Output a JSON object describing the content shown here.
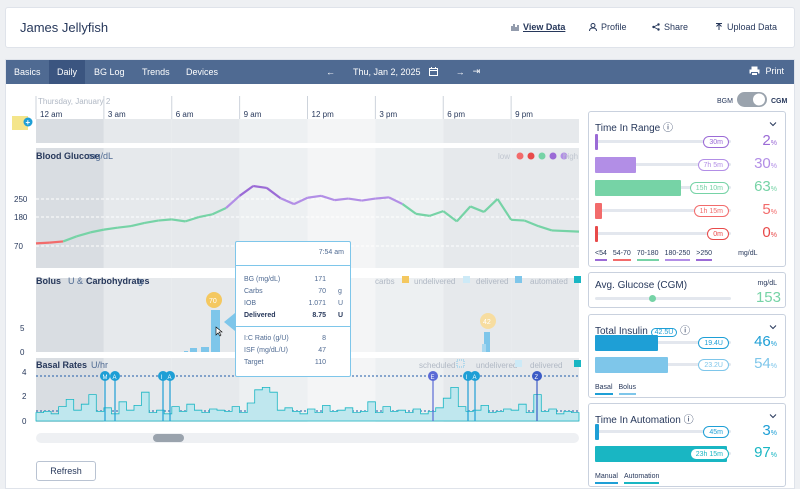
{
  "header": {
    "patient_name": "James Jellyfish",
    "view_data": "View Data",
    "profile": "Profile",
    "share": "Share",
    "upload": "Upload Data"
  },
  "tabs": [
    "Basics",
    "Daily",
    "BG Log",
    "Trends",
    "Devices"
  ],
  "active_tab": "Daily",
  "date_nav": {
    "date": "Thu, Jan 2, 2025"
  },
  "print": "Print",
  "toggle": {
    "left": "BGM",
    "right": "CGM"
  },
  "day_label": "Thursday, January 2",
  "time_ticks": [
    "12 am",
    "3 am",
    "6 am",
    "9 am",
    "12 pm",
    "3 pm",
    "6 pm",
    "9 pm"
  ],
  "bg_panel": {
    "title": "Blood Glucose",
    "unit": "mg/dL",
    "legend_low": "low",
    "legend_high": "high",
    "y_ticks": [
      "250",
      "180",
      "70"
    ],
    "colors": {
      "low": "#f26b6b",
      "target": "#76d3a6",
      "high": "#b28ee6",
      "very_high": "#9b6bd6"
    }
  },
  "bolus_panel": {
    "title": "Bolus",
    "unit_u": "U",
    "amp": "&",
    "carbs_title": "Carbohydrates",
    "unit_g": "g",
    "legend": [
      "carbs",
      "undelivered",
      "delivered",
      "automated"
    ],
    "y_ticks": [
      "5",
      "0"
    ],
    "carb_labels": [
      "70",
      "42"
    ]
  },
  "basal_panel": {
    "title": "Basal Rates",
    "unit": "U/hr",
    "legend": [
      "scheduled",
      "undelivered",
      "delivered",
      "automated"
    ],
    "y_ticks": [
      "4",
      "2",
      "0"
    ],
    "markers": [
      "M",
      "A",
      "I",
      "A",
      "E",
      "I",
      "A",
      "Z"
    ]
  },
  "tooltip": {
    "time": "7:54 am",
    "rows": [
      {
        "label": "BG (mg/dL)",
        "value": "171",
        "unit": ""
      },
      {
        "label": "Carbs",
        "value": "70",
        "unit": "g"
      },
      {
        "label": "IOB",
        "value": "1.071",
        "unit": "U"
      },
      {
        "label": "Delivered",
        "value": "8.75",
        "unit": "U"
      },
      {
        "label": "I:C Ratio (g/U)",
        "value": "8",
        "unit": ""
      },
      {
        "label": "ISF (mg/dL/U)",
        "value": "47",
        "unit": ""
      },
      {
        "label": "Target",
        "value": "110",
        "unit": ""
      }
    ]
  },
  "refresh": "Refresh",
  "time_in_range": {
    "title": "Time In Range",
    "bars": [
      {
        "pill": "30m",
        "pct": "2",
        "frac": 0.02,
        "color": "#9b6bd6"
      },
      {
        "pill": "7h 5m",
        "pct": "30",
        "frac": 0.3,
        "color": "#b28ee6"
      },
      {
        "pill": "15h 10m",
        "pct": "63",
        "frac": 0.63,
        "color": "#76d3a6"
      },
      {
        "pill": "1h 15m",
        "pct": "5",
        "frac": 0.05,
        "color": "#f26b6b"
      },
      {
        "pill": "0m",
        "pct": "0",
        "frac": 0.0,
        "color": "#e84a4a"
      }
    ],
    "pct_sign": "%",
    "legend": [
      "<54",
      "54-70",
      "70-180",
      "180-250",
      ">250"
    ],
    "unit": "mg/dL"
  },
  "avg_glucose": {
    "title": "Avg. Glucose (CGM)",
    "unit": "mg/dL",
    "value": "153",
    "frac": 0.42
  },
  "total_insulin": {
    "title": "Total Insulin",
    "total": "42.5U",
    "bars": [
      {
        "pill": "19.4U",
        "pct": "46",
        "frac": 0.46,
        "color": "#1e9fd6"
      },
      {
        "pill": "23.2U",
        "pct": "54",
        "frac": 0.54,
        "color": "#7ec6ea"
      }
    ],
    "legend": [
      "Basal",
      "Bolus"
    ]
  },
  "time_in_automation": {
    "title": "Time In Automation",
    "bars": [
      {
        "pill": "45m",
        "pct": "3",
        "frac": 0.03,
        "color": "#1e9fd6"
      },
      {
        "pill": "23h 15m",
        "pct": "97",
        "frac": 0.97,
        "color": "#19b6c3"
      }
    ],
    "legend": [
      "Manual",
      "Automation"
    ]
  }
}
